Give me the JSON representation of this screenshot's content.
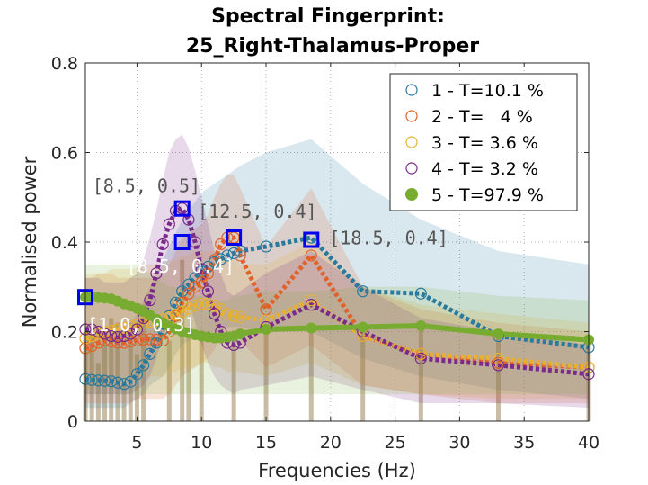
{
  "chart_data": {
    "type": "line",
    "title_lines": [
      "Spectral Fingerprint:",
      "25_Right-Thalamus-Proper"
    ],
    "xlabel": "Frequencies (Hz)",
    "ylabel": "Normalised power",
    "xlim": [
      1,
      40
    ],
    "ylim": [
      0,
      0.8
    ],
    "xticks": [
      5,
      10,
      15,
      20,
      25,
      30,
      35,
      40
    ],
    "yticks": [
      0,
      0.2,
      0.4,
      0.6,
      0.8
    ],
    "xtick_labels": [
      "5",
      "10",
      "15",
      "20",
      "25",
      "30",
      "35",
      "40"
    ],
    "ytick_labels": [
      "0",
      "0.2",
      "0.4",
      "0.6",
      "0.8"
    ],
    "grid": true,
    "legend_position": "top-right",
    "x": [
      1,
      1.5,
      2,
      2.5,
      3,
      3.5,
      4,
      4.5,
      5,
      5.5,
      6,
      6.5,
      7,
      7.5,
      8,
      8.5,
      9,
      9.5,
      10,
      10.5,
      11,
      11.5,
      12,
      12.5,
      13,
      15,
      18.5,
      22.5,
      27,
      33,
      40
    ],
    "series": [
      {
        "name": "1 - T=10.1 %",
        "color": "#2a7a9e",
        "marker": "circle",
        "values": [
          0.094,
          0.092,
          0.091,
          0.09,
          0.089,
          0.086,
          0.083,
          0.088,
          0.105,
          0.125,
          0.15,
          0.175,
          0.205,
          0.235,
          0.265,
          0.29,
          0.305,
          0.32,
          0.335,
          0.345,
          0.355,
          0.362,
          0.37,
          0.375,
          0.38,
          0.39,
          0.41,
          0.29,
          0.285,
          0.19,
          0.165
        ],
        "band_low": [
          0.03,
          0.03,
          0.03,
          0.03,
          0.03,
          0.03,
          0.03,
          0.04,
          0.05,
          0.06,
          0.08,
          0.09,
          0.1,
          0.12,
          0.15,
          0.17,
          0.18,
          0.19,
          0.2,
          0.2,
          0.2,
          0.2,
          0.21,
          0.21,
          0.21,
          0.2,
          0.2,
          0.14,
          0.1,
          0.07,
          0.05
        ],
        "band_high": [
          0.2,
          0.2,
          0.2,
          0.2,
          0.2,
          0.2,
          0.2,
          0.22,
          0.24,
          0.27,
          0.3,
          0.33,
          0.36,
          0.39,
          0.42,
          0.45,
          0.47,
          0.49,
          0.51,
          0.52,
          0.53,
          0.54,
          0.55,
          0.56,
          0.57,
          0.6,
          0.63,
          0.53,
          0.45,
          0.38,
          0.35
        ]
      },
      {
        "name": "2 - T=   4 %",
        "color": "#e0622a",
        "marker": "circle",
        "values": [
          0.163,
          0.168,
          0.175,
          0.18,
          0.178,
          0.175,
          0.175,
          0.178,
          0.18,
          0.182,
          0.183,
          0.182,
          0.18,
          0.2,
          0.235,
          0.265,
          0.285,
          0.3,
          0.31,
          0.33,
          0.36,
          0.395,
          0.41,
          0.41,
          0.37,
          0.25,
          0.37,
          0.19,
          0.15,
          0.13,
          0.12
        ],
        "band_low": [
          0.04,
          0.04,
          0.04,
          0.04,
          0.04,
          0.04,
          0.04,
          0.04,
          0.05,
          0.05,
          0.05,
          0.05,
          0.05,
          0.06,
          0.08,
          0.1,
          0.11,
          0.12,
          0.13,
          0.14,
          0.16,
          0.18,
          0.2,
          0.2,
          0.18,
          0.12,
          0.17,
          0.08,
          0.06,
          0.04,
          0.04
        ],
        "band_high": [
          0.32,
          0.32,
          0.33,
          0.33,
          0.33,
          0.32,
          0.32,
          0.32,
          0.32,
          0.32,
          0.32,
          0.32,
          0.33,
          0.35,
          0.38,
          0.41,
          0.42,
          0.43,
          0.44,
          0.46,
          0.5,
          0.53,
          0.55,
          0.55,
          0.52,
          0.39,
          0.52,
          0.3,
          0.25,
          0.22,
          0.2
        ]
      },
      {
        "name": "3 - T= 3.6 %",
        "color": "#e8b030",
        "marker": "circle",
        "values": [
          0.185,
          0.19,
          0.195,
          0.2,
          0.202,
          0.205,
          0.208,
          0.212,
          0.215,
          0.22,
          0.222,
          0.225,
          0.228,
          0.232,
          0.238,
          0.245,
          0.252,
          0.258,
          0.262,
          0.262,
          0.258,
          0.25,
          0.24,
          0.235,
          0.232,
          0.225,
          0.27,
          0.19,
          0.15,
          0.14,
          0.12
        ],
        "band_low": [
          0.07,
          0.07,
          0.08,
          0.08,
          0.08,
          0.08,
          0.09,
          0.09,
          0.09,
          0.1,
          0.1,
          0.1,
          0.1,
          0.11,
          0.11,
          0.12,
          0.12,
          0.12,
          0.13,
          0.13,
          0.12,
          0.12,
          0.11,
          0.11,
          0.11,
          0.1,
          0.13,
          0.08,
          0.06,
          0.05,
          0.05
        ],
        "band_high": [
          0.33,
          0.33,
          0.33,
          0.33,
          0.34,
          0.34,
          0.34,
          0.34,
          0.34,
          0.35,
          0.35,
          0.35,
          0.35,
          0.36,
          0.36,
          0.37,
          0.37,
          0.38,
          0.38,
          0.38,
          0.38,
          0.37,
          0.36,
          0.36,
          0.35,
          0.35,
          0.4,
          0.3,
          0.26,
          0.24,
          0.22
        ]
      },
      {
        "name": "4 - T= 3.2 %",
        "color": "#7a2a8a",
        "marker": "circle",
        "values": [
          0.205,
          0.205,
          0.2,
          0.195,
          0.19,
          0.188,
          0.19,
          0.195,
          0.205,
          0.23,
          0.27,
          0.33,
          0.395,
          0.44,
          0.47,
          0.475,
          0.45,
          0.4,
          0.34,
          0.29,
          0.24,
          0.2,
          0.175,
          0.17,
          0.175,
          0.21,
          0.26,
          0.2,
          0.14,
          0.125,
          0.105
        ],
        "band_low": [
          0.06,
          0.06,
          0.06,
          0.06,
          0.06,
          0.06,
          0.06,
          0.06,
          0.07,
          0.08,
          0.1,
          0.14,
          0.19,
          0.24,
          0.28,
          0.3,
          0.27,
          0.22,
          0.17,
          0.13,
          0.1,
          0.08,
          0.07,
          0.06,
          0.07,
          0.08,
          0.1,
          0.07,
          0.04,
          0.04,
          0.03
        ],
        "band_high": [
          0.32,
          0.32,
          0.32,
          0.31,
          0.31,
          0.31,
          0.31,
          0.32,
          0.33,
          0.36,
          0.41,
          0.47,
          0.54,
          0.6,
          0.63,
          0.64,
          0.61,
          0.56,
          0.5,
          0.44,
          0.38,
          0.33,
          0.29,
          0.28,
          0.29,
          0.33,
          0.38,
          0.3,
          0.23,
          0.2,
          0.17
        ]
      },
      {
        "name": "5 - T=97.9 %",
        "color": "#77ac30",
        "marker": "filled-circle",
        "values": [
          0.277,
          0.277,
          0.276,
          0.275,
          0.273,
          0.268,
          0.262,
          0.257,
          0.252,
          0.245,
          0.237,
          0.228,
          0.22,
          0.212,
          0.206,
          0.2,
          0.197,
          0.193,
          0.19,
          0.188,
          0.186,
          0.186,
          0.188,
          0.19,
          0.195,
          0.205,
          0.208,
          0.21,
          0.213,
          0.195,
          0.182
        ],
        "band_low": [
          0.06,
          0.06,
          0.06,
          0.06,
          0.06,
          0.06,
          0.06,
          0.06,
          0.06,
          0.06,
          0.06,
          0.06,
          0.06,
          0.06,
          0.06,
          0.06,
          0.06,
          0.06,
          0.06,
          0.06,
          0.06,
          0.06,
          0.06,
          0.06,
          0.06,
          0.06,
          0.06,
          0.06,
          0.06,
          0.06,
          0.06
        ],
        "band_high": [
          0.35,
          0.35,
          0.35,
          0.35,
          0.35,
          0.35,
          0.35,
          0.35,
          0.35,
          0.34,
          0.33,
          0.32,
          0.31,
          0.3,
          0.3,
          0.29,
          0.29,
          0.28,
          0.28,
          0.28,
          0.27,
          0.27,
          0.27,
          0.28,
          0.28,
          0.29,
          0.29,
          0.3,
          0.3,
          0.28,
          0.27
        ]
      }
    ],
    "peaks": [
      {
        "x": 8.5,
        "y": 0.475,
        "label": "[8.5, 0.5]",
        "style": "gray"
      },
      {
        "x": 8.5,
        "y": 0.4,
        "label": "[8.5, 0.4]",
        "style": "white"
      },
      {
        "x": 12.5,
        "y": 0.41,
        "label": "[12.5, 0.4]",
        "style": "gray"
      },
      {
        "x": 18.5,
        "y": 0.405,
        "label": "[18.5, 0.4]",
        "style": "gray"
      },
      {
        "x": 1,
        "y": 0.277,
        "label": "[1.0, 0.3]",
        "style": "white"
      }
    ],
    "stems": [
      {
        "x": 1,
        "y": 0.2
      },
      {
        "x": 1.5,
        "y": 0.2
      },
      {
        "x": 2,
        "y": 0.13
      },
      {
        "x": 2.5,
        "y": 0.21
      },
      {
        "x": 3,
        "y": 0.23
      },
      {
        "x": 3.5,
        "y": 0.22
      },
      {
        "x": 4,
        "y": 0.09
      },
      {
        "x": 4.5,
        "y": 0.22
      },
      {
        "x": 5,
        "y": 0.15
      },
      {
        "x": 5.5,
        "y": 0.26
      },
      {
        "x": 7.5,
        "y": 0.18
      },
      {
        "x": 8.5,
        "y": 0.36
      },
      {
        "x": 9,
        "y": 0.2
      },
      {
        "x": 10,
        "y": 0.19
      },
      {
        "x": 12.5,
        "y": 0.2
      },
      {
        "x": 15,
        "y": 0.21
      },
      {
        "x": 18.5,
        "y": 0.2
      },
      {
        "x": 22.5,
        "y": 0.2
      },
      {
        "x": 27,
        "y": 0.21
      },
      {
        "x": 33,
        "y": 0.19
      },
      {
        "x": 40,
        "y": 0.18
      }
    ],
    "stem_color": "#b8a88a"
  }
}
